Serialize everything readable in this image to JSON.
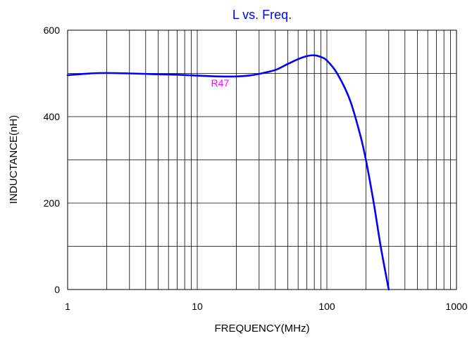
{
  "chart_data": {
    "type": "line",
    "title": "L vs. Freq.",
    "xlabel": "FREQUENCY(MHz)",
    "ylabel": "INDUCTANCE(nH)",
    "x_scale": "log",
    "xlim": [
      1,
      1000
    ],
    "ylim": [
      0,
      600
    ],
    "x_ticks": [
      {
        "value": 1,
        "label": "1"
      },
      {
        "value": 10,
        "label": "10"
      },
      {
        "value": 100,
        "label": "100"
      },
      {
        "value": 1000,
        "label": "1000"
      }
    ],
    "y_ticks": [
      {
        "value": 0,
        "label": "0"
      },
      {
        "value": 200,
        "label": "200"
      },
      {
        "value": 400,
        "label": "400"
      },
      {
        "value": 600,
        "label": "600"
      }
    ],
    "grid": true,
    "annotations": [
      {
        "text": "R47",
        "x": 15,
        "y": 470,
        "color": "#ff00ff"
      }
    ],
    "series": [
      {
        "color": "#0000ff",
        "x": [
          1,
          1.5,
          2,
          3,
          4,
          5,
          7,
          10,
          15,
          20,
          25,
          30,
          40,
          50,
          60,
          70,
          80,
          90,
          100,
          120,
          150,
          180,
          200,
          230,
          260,
          300
        ],
        "y": [
          496,
          500,
          501,
          500,
          499,
          498,
          497,
          495,
          493,
          493,
          495,
          499,
          508,
          522,
          533,
          540,
          542,
          538,
          530,
          500,
          440,
          360,
          300,
          200,
          100,
          0
        ]
      }
    ]
  }
}
